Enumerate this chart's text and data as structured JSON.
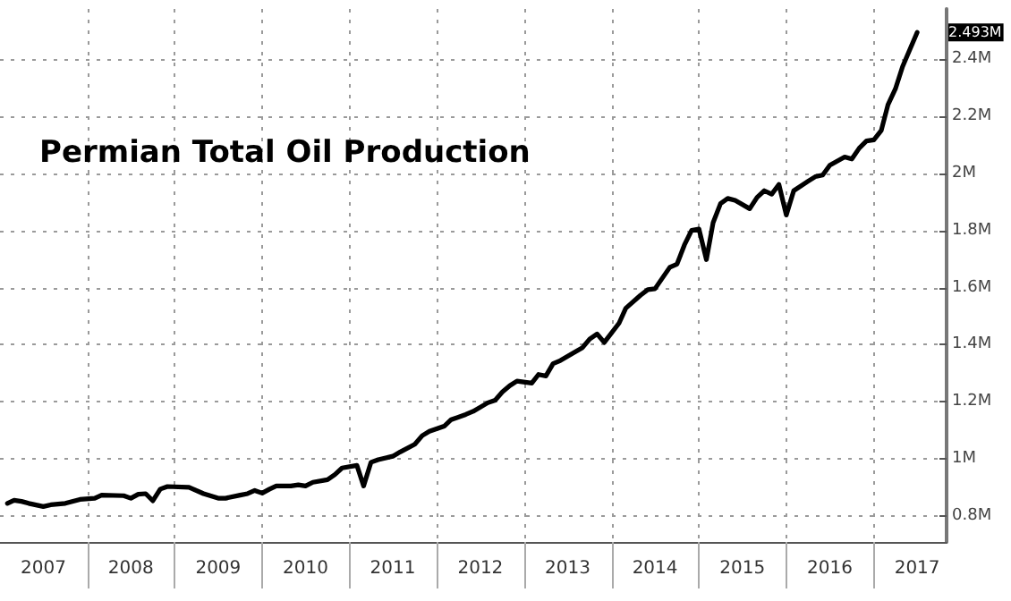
{
  "chart_data": {
    "type": "line",
    "title": "Permian Total Oil Production",
    "x": [
      "2007-02",
      "2007-03",
      "2007-04",
      "2007-05",
      "2007-07",
      "2007-08",
      "2007-10",
      "2007-12",
      "2008-02",
      "2008-03",
      "2008-06",
      "2008-07",
      "2008-08",
      "2008-09",
      "2008-10",
      "2008-11",
      "2008-12",
      "2009-03",
      "2009-05",
      "2009-07",
      "2009-08",
      "2009-10",
      "2009-11",
      "2009-12",
      "2010-01",
      "2010-02",
      "2010-03",
      "2010-05",
      "2010-06",
      "2010-07",
      "2010-08",
      "2010-10",
      "2010-11",
      "2010-12",
      "2011-02",
      "2011-03",
      "2011-04",
      "2011-05",
      "2011-07",
      "2011-08",
      "2011-10",
      "2011-11",
      "2011-12",
      "2012-02",
      "2012-03",
      "2012-05",
      "2012-06",
      "2012-08",
      "2012-09",
      "2012-10",
      "2012-11",
      "2012-12",
      "2013-02",
      "2013-03",
      "2013-04",
      "2013-05",
      "2013-06",
      "2013-08",
      "2013-09",
      "2013-10",
      "2013-11",
      "2013-12",
      "2014-02",
      "2014-03",
      "2014-05",
      "2014-06",
      "2014-07",
      "2014-09",
      "2014-10",
      "2014-11",
      "2014-12",
      "2015-01",
      "2015-02",
      "2015-03",
      "2015-04",
      "2015-05",
      "2015-06",
      "2015-08",
      "2015-09",
      "2015-10",
      "2015-11",
      "2015-12",
      "2016-01",
      "2016-02",
      "2016-04",
      "2016-05",
      "2016-06",
      "2016-07",
      "2016-09",
      "2016-10",
      "2016-11",
      "2016-12",
      "2017-01",
      "2017-02",
      "2017-03",
      "2017-04",
      "2017-05",
      "2017-07"
    ],
    "series": [
      {
        "color": "#000000",
        "values": [
          845000,
          856000,
          852000,
          845000,
          834000,
          840000,
          845000,
          859000,
          863000,
          874000,
          872000,
          863000,
          877000,
          879000,
          854000,
          895000,
          904000,
          901000,
          879000,
          863000,
          863000,
          874000,
          879000,
          890000,
          881000,
          895000,
          906000,
          906000,
          910000,
          906000,
          919000,
          928000,
          946000,
          969000,
          978000,
          906000,
          989000,
          998000,
          1010000,
          1025000,
          1052000,
          1082000,
          1097000,
          1115000,
          1138000,
          1156000,
          1167000,
          1197000,
          1206000,
          1235000,
          1257000,
          1273000,
          1266000,
          1296000,
          1291000,
          1334000,
          1345000,
          1375000,
          1390000,
          1420000,
          1438000,
          1408000,
          1476000,
          1528000,
          1573000,
          1593000,
          1596000,
          1671000,
          1682000,
          1749000,
          1800000,
          1805000,
          1698000,
          1827000,
          1894000,
          1912000,
          1905000,
          1876000,
          1916000,
          1939000,
          1927000,
          1961000,
          1854000,
          1939000,
          1972000,
          1988000,
          1994000,
          2028000,
          2057000,
          2050000,
          2088000,
          2113000,
          2117000,
          2150000,
          2240000,
          2295000,
          2373000,
          2493000
        ]
      }
    ],
    "xlim": [
      "2007-01",
      "2017-11"
    ],
    "xticks": [
      {
        "value": "2007-07",
        "label": "2007"
      },
      {
        "value": "2008-01",
        "label": null
      },
      {
        "value": "2008-07",
        "label": "2008"
      },
      {
        "value": "2009-01",
        "label": null
      },
      {
        "value": "2009-07",
        "label": "2009"
      },
      {
        "value": "2010-01",
        "label": null
      },
      {
        "value": "2010-07",
        "label": "2010"
      },
      {
        "value": "2011-01",
        "label": null
      },
      {
        "value": "2011-07",
        "label": "2011"
      },
      {
        "value": "2012-01",
        "label": null
      },
      {
        "value": "2012-07",
        "label": "2012"
      },
      {
        "value": "2013-01",
        "label": null
      },
      {
        "value": "2013-07",
        "label": "2013"
      },
      {
        "value": "2014-01",
        "label": null
      },
      {
        "value": "2014-07",
        "label": "2014"
      },
      {
        "value": "2015-01",
        "label": null
      },
      {
        "value": "2015-07",
        "label": "2015"
      },
      {
        "value": "2016-01",
        "label": null
      },
      {
        "value": "2016-07",
        "label": "2016"
      },
      {
        "value": "2017-01",
        "label": null
      },
      {
        "value": "2017-07",
        "label": "2017"
      }
    ],
    "ylim": [
      710000,
      2575000
    ],
    "yticks": [
      {
        "value": 800000,
        "label": "0.8M"
      },
      {
        "value": 1000000,
        "label": "1M"
      },
      {
        "value": 1200000,
        "label": "1.2M"
      },
      {
        "value": 1400000,
        "label": "1.4M"
      },
      {
        "value": 1600000,
        "label": "1.6M"
      },
      {
        "value": 1800000,
        "label": "1.8M"
      },
      {
        "value": 2000000,
        "label": "2M"
      },
      {
        "value": 2200000,
        "label": "2.2M"
      },
      {
        "value": 2400000,
        "label": "2.4M"
      }
    ],
    "annotations": [
      {
        "text": "2.493M",
        "x": "2017-07",
        "y": 2493000
      }
    ],
    "grid": true,
    "marker": "none",
    "line_style": "solid"
  }
}
